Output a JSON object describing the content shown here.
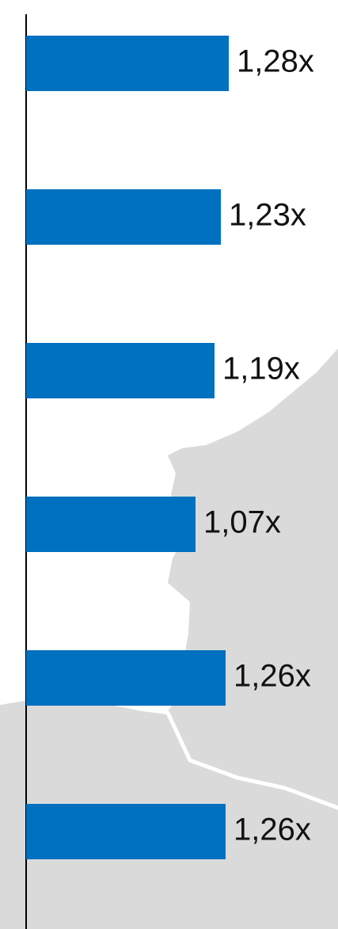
{
  "chart_data": {
    "type": "bar",
    "orientation": "horizontal",
    "categories": [
      "",
      "",
      "",
      "",
      "",
      ""
    ],
    "values": [
      1.28,
      1.23,
      1.19,
      1.07,
      1.26,
      1.26
    ],
    "data_labels": [
      "1,28x",
      "1,23x",
      "1,19x",
      "1,07x",
      "1,26x",
      "1,26x"
    ],
    "title": "",
    "xlabel": "",
    "ylabel": "",
    "xlim": [
      0,
      1.6
    ],
    "grid": false,
    "legend": "none",
    "bar_color": "#0070C0",
    "axis_color": "#000000",
    "background_map_color": "#DADADA",
    "background_map_border_color": "#FFFFFF"
  }
}
